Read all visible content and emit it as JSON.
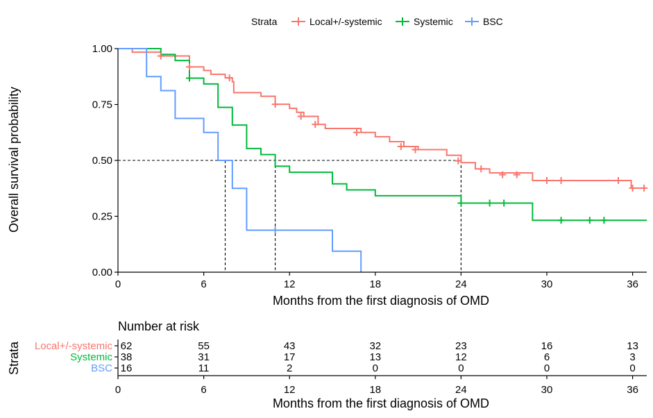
{
  "chart_data": {
    "type": "line",
    "subtype": "kaplan-meier",
    "legend": {
      "title": "Strata",
      "position": "top",
      "entries": [
        "Local+/-systemic",
        "Systemic",
        "BSC"
      ]
    },
    "xlabel": "Months from the first diagnosis of OMD",
    "ylabel": "Overall survival probability",
    "xlim": [
      0,
      37
    ],
    "ylim": [
      0,
      1
    ],
    "xticks": [
      "0",
      "6",
      "12",
      "18",
      "24",
      "30",
      "36"
    ],
    "xtick_values": [
      0,
      6,
      12,
      18,
      24,
      30,
      36
    ],
    "yticks": [
      "0.00",
      "0.25",
      "0.50",
      "0.75",
      "1.00"
    ],
    "ytick_values": [
      0,
      0.25,
      0.5,
      0.75,
      1.0
    ],
    "grid": false,
    "series": [
      {
        "name": "Local+/-systemic",
        "color": "#F8766D",
        "steps": [
          [
            0,
            1.0
          ],
          [
            1,
            0.984
          ],
          [
            3,
            0.967
          ],
          [
            5,
            0.918
          ],
          [
            6,
            0.902
          ],
          [
            6.5,
            0.885
          ],
          [
            7.5,
            0.869
          ],
          [
            8,
            0.852
          ],
          [
            8.1,
            0.803
          ],
          [
            10,
            0.787
          ],
          [
            11,
            0.751
          ],
          [
            12,
            0.733
          ],
          [
            12.5,
            0.715
          ],
          [
            13,
            0.697
          ],
          [
            14,
            0.661
          ],
          [
            14.5,
            0.643
          ],
          [
            17,
            0.625
          ],
          [
            18,
            0.606
          ],
          [
            19,
            0.584
          ],
          [
            20,
            0.562
          ],
          [
            21,
            0.548
          ],
          [
            23,
            0.523
          ],
          [
            24,
            0.49
          ],
          [
            25,
            0.462
          ],
          [
            26,
            0.444
          ],
          [
            29,
            0.41
          ],
          [
            35.9,
            0.376
          ]
        ],
        "end": 37,
        "censor": [
          [
            3,
            0.967
          ],
          [
            5,
            0.918
          ],
          [
            7.8,
            0.869
          ],
          [
            11,
            0.751
          ],
          [
            12.8,
            0.697
          ],
          [
            13.8,
            0.661
          ],
          [
            16.7,
            0.625
          ],
          [
            19.8,
            0.562
          ],
          [
            20.8,
            0.548
          ],
          [
            23.8,
            0.498
          ],
          [
            25.4,
            0.462
          ],
          [
            26.9,
            0.436
          ],
          [
            27.9,
            0.436
          ],
          [
            30,
            0.41
          ],
          [
            31,
            0.41
          ],
          [
            35,
            0.41
          ],
          [
            36,
            0.376
          ],
          [
            36.8,
            0.376
          ]
        ]
      },
      {
        "name": "Systemic",
        "color": "#00BA38",
        "steps": [
          [
            0,
            1.0
          ],
          [
            3,
            0.974
          ],
          [
            4,
            0.947
          ],
          [
            5,
            0.868
          ],
          [
            6,
            0.842
          ],
          [
            7,
            0.737
          ],
          [
            8,
            0.658
          ],
          [
            9,
            0.553
          ],
          [
            10,
            0.526
          ],
          [
            11,
            0.474
          ],
          [
            12,
            0.447
          ],
          [
            15,
            0.395
          ],
          [
            16,
            0.368
          ],
          [
            18,
            0.342
          ],
          [
            24,
            0.309
          ],
          [
            29,
            0.232
          ]
        ],
        "end": 37,
        "censor": [
          [
            5,
            0.868
          ],
          [
            24,
            0.309
          ],
          [
            26,
            0.309
          ],
          [
            27,
            0.309
          ],
          [
            31,
            0.232
          ],
          [
            33,
            0.232
          ],
          [
            34,
            0.232
          ]
        ]
      },
      {
        "name": "BSC",
        "color": "#619CFF",
        "steps": [
          [
            0,
            1.0
          ],
          [
            2,
            0.875
          ],
          [
            3,
            0.812
          ],
          [
            4,
            0.688
          ],
          [
            6,
            0.625
          ],
          [
            7,
            0.5
          ],
          [
            8,
            0.375
          ],
          [
            9,
            0.188
          ],
          [
            15,
            0.094
          ],
          [
            17,
            0.0
          ]
        ],
        "end": 17,
        "censor": [
          [
            11,
            0.188
          ]
        ]
      }
    ],
    "median_lines": {
      "y": 0.5,
      "x_end": 24,
      "x_values": [
        7.5,
        11,
        24
      ]
    },
    "risk_table": {
      "title": "Number at risk",
      "ylabel": "Strata",
      "xlabel": "Months from the first diagnosis of OMD",
      "times": [
        0,
        6,
        12,
        18,
        24,
        30,
        36
      ],
      "time_labels": [
        "0",
        "6",
        "12",
        "18",
        "24",
        "30",
        "36"
      ],
      "rows": [
        {
          "name": "Local+/-systemic",
          "color": "#F8766D",
          "values": [
            "62",
            "55",
            "43",
            "32",
            "23",
            "16",
            "13"
          ]
        },
        {
          "name": "Systemic",
          "color": "#00BA38",
          "values": [
            "38",
            "31",
            "17",
            "13",
            "12",
            "6",
            "3"
          ]
        },
        {
          "name": "BSC",
          "color": "#619CFF",
          "values": [
            "16",
            "11",
            "2",
            "0",
            "0",
            "0",
            "0"
          ]
        }
      ]
    }
  }
}
